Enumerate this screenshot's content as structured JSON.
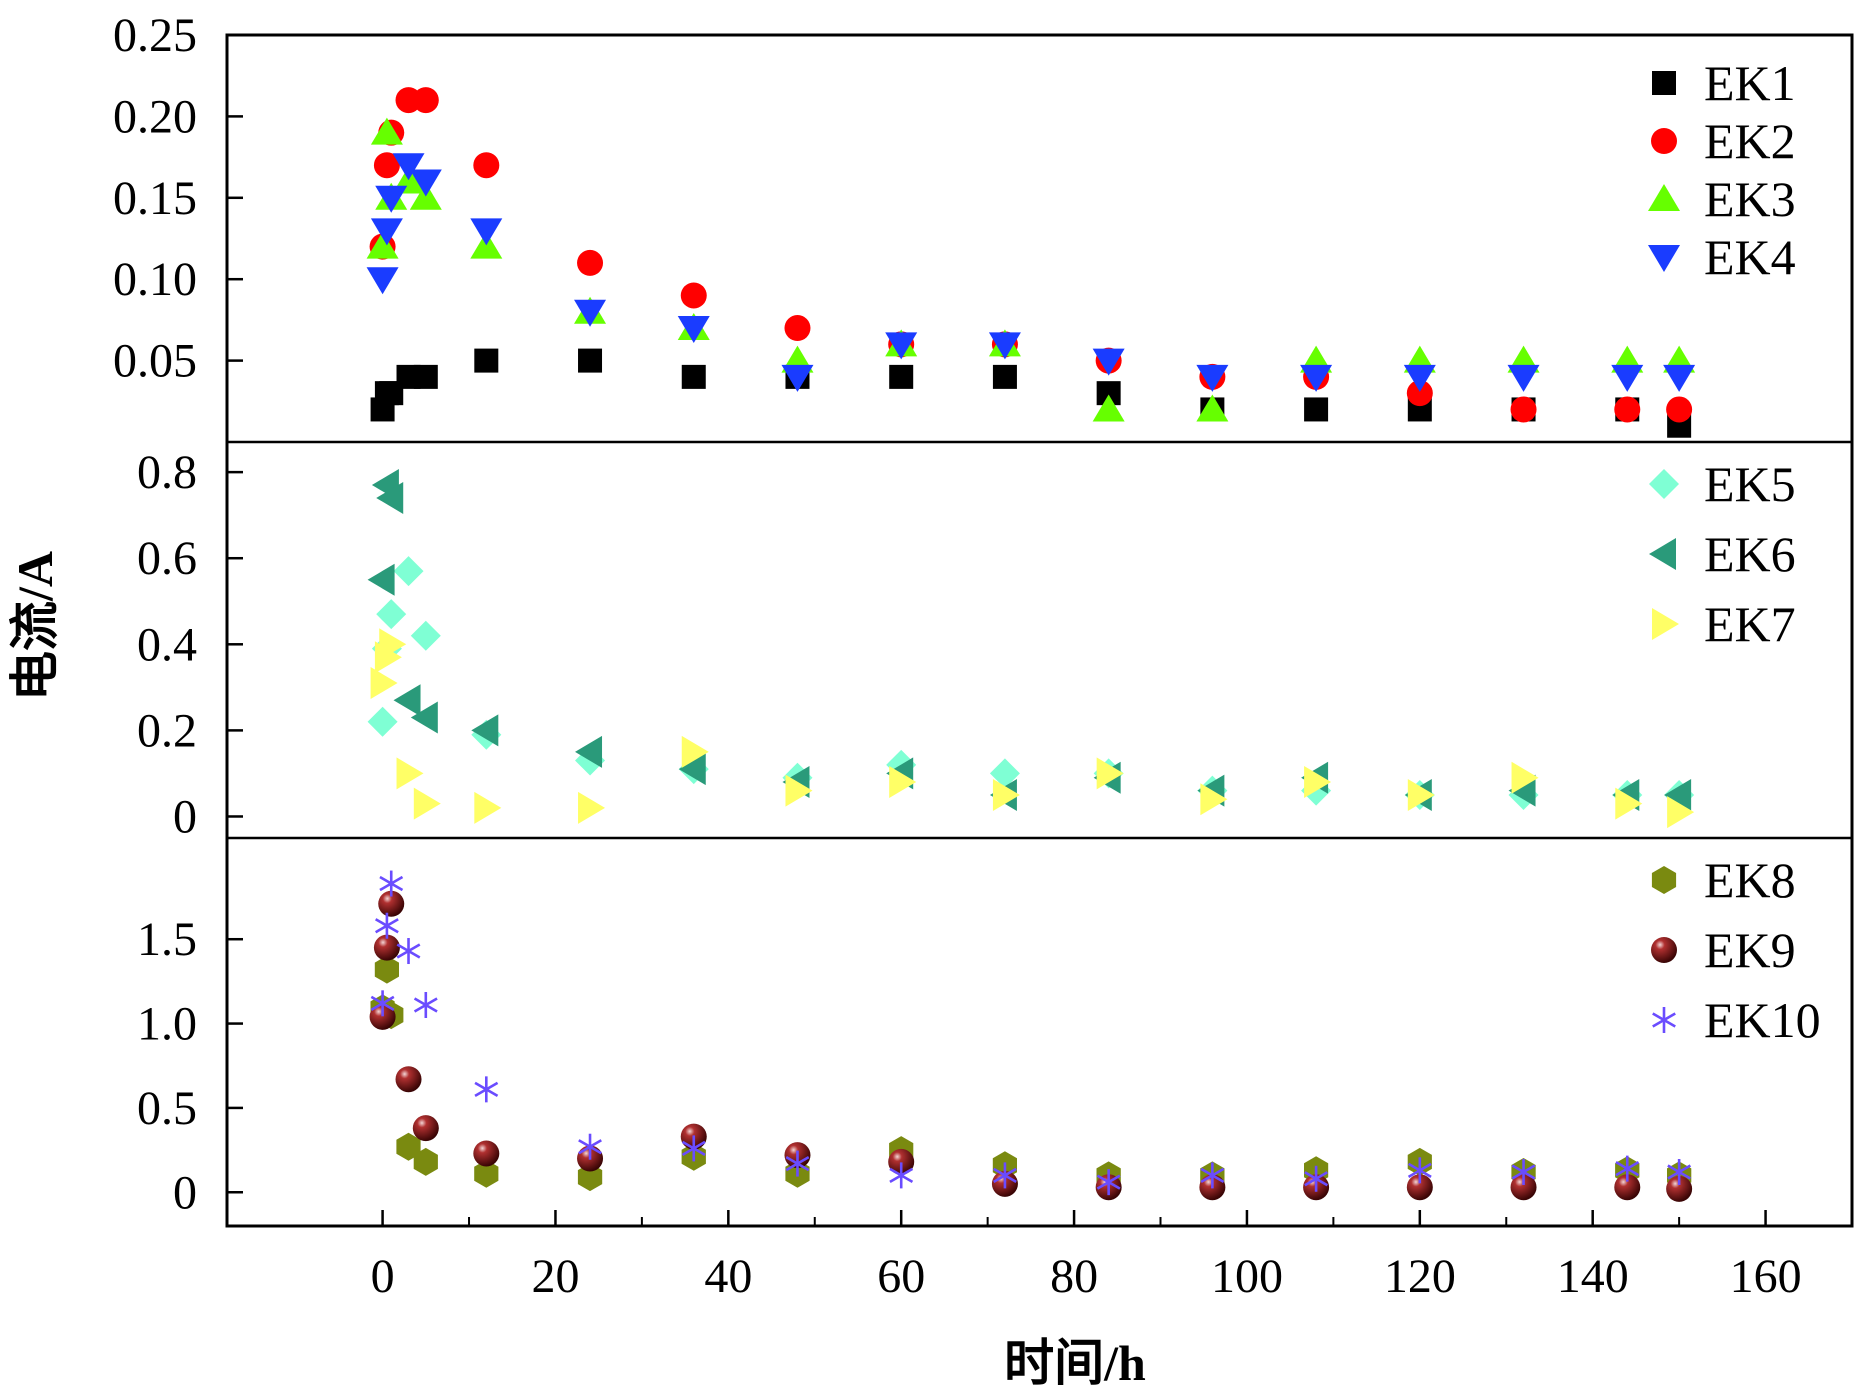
{
  "chart_data": {
    "type": "scatter",
    "xlabel": "时间/h",
    "ylabel": "电流/A",
    "xlim": [
      -18,
      170
    ],
    "xticks": [
      "0",
      "20",
      "40",
      "60",
      "80",
      "100",
      "120",
      "140",
      "160"
    ],
    "grid": false,
    "x": [
      0,
      0.5,
      1,
      3,
      5,
      12,
      24,
      36,
      48,
      60,
      72,
      84,
      96,
      108,
      120,
      132,
      144,
      150
    ],
    "panels": [
      {
        "ylim": [
          0,
          0.25
        ],
        "yticks": [
          "0.05",
          "0.10",
          "0.15",
          "0.20",
          "0.25"
        ],
        "legend_position": "top-right",
        "series": [
          {
            "name": "EK1",
            "marker": "square",
            "color": "#000000",
            "values": [
              0.02,
              0.03,
              0.03,
              0.04,
              0.04,
              0.05,
              0.05,
              0.04,
              0.04,
              0.04,
              0.04,
              0.03,
              0.02,
              0.02,
              0.02,
              0.02,
              0.02,
              0.01
            ]
          },
          {
            "name": "EK2",
            "marker": "circle",
            "color": "#ff0000",
            "values": [
              0.12,
              0.17,
              0.19,
              0.21,
              0.21,
              0.17,
              0.11,
              0.09,
              0.07,
              0.06,
              0.06,
              0.05,
              0.04,
              0.04,
              0.03,
              0.02,
              0.02,
              0.02
            ]
          },
          {
            "name": "EK3",
            "marker": "triangle-up",
            "color": "#66ff00",
            "values": [
              0.12,
              0.19,
              0.15,
              0.16,
              0.15,
              0.12,
              0.08,
              0.07,
              0.05,
              0.06,
              0.06,
              0.02,
              0.02,
              0.05,
              0.05,
              0.05,
              0.05,
              0.05
            ]
          },
          {
            "name": "EK4",
            "marker": "triangle-down",
            "color": "#1a3cff",
            "values": [
              0.1,
              0.13,
              0.15,
              0.17,
              0.16,
              0.13,
              0.08,
              0.07,
              0.04,
              0.06,
              0.06,
              0.05,
              0.04,
              0.04,
              0.04,
              0.04,
              0.04,
              0.04
            ]
          }
        ]
      },
      {
        "ylim": [
          -0.05,
          0.87
        ],
        "yticks": [
          "0",
          "0.2",
          "0.4",
          "0.6",
          "0.8"
        ],
        "legend_position": "top-right",
        "series": [
          {
            "name": "EK5",
            "marker": "diamond",
            "color": "#7fffd4",
            "values": [
              0.22,
              0.39,
              0.47,
              0.57,
              0.42,
              0.19,
              0.13,
              0.11,
              0.09,
              0.12,
              0.1,
              0.1,
              0.06,
              0.06,
              0.05,
              0.05,
              0.05,
              0.05
            ]
          },
          {
            "name": "EK6",
            "marker": "triangle-left",
            "color": "#2a9a7a",
            "values": [
              0.55,
              0.77,
              0.74,
              0.27,
              0.23,
              0.2,
              0.15,
              0.11,
              0.08,
              0.1,
              0.05,
              0.09,
              0.06,
              0.09,
              0.05,
              0.06,
              0.05,
              0.05
            ]
          },
          {
            "name": "EK7",
            "marker": "triangle-right",
            "color": "#ffff66",
            "values": [
              0.31,
              0.37,
              0.4,
              0.1,
              0.03,
              0.02,
              0.02,
              0.15,
              0.06,
              0.08,
              0.05,
              0.1,
              0.04,
              0.08,
              0.05,
              0.09,
              0.03,
              0.01
            ]
          }
        ]
      },
      {
        "ylim": [
          -0.2,
          2.1
        ],
        "yticks": [
          "0",
          "0.5",
          "1.0",
          "1.5"
        ],
        "legend_position": "top-right",
        "series": [
          {
            "name": "EK8",
            "marker": "hexagon",
            "color": "#7a8a10",
            "values": [
              1.09,
              1.32,
              1.05,
              0.27,
              0.18,
              0.11,
              0.09,
              0.21,
              0.11,
              0.25,
              0.16,
              0.1,
              0.1,
              0.13,
              0.18,
              0.12,
              0.13,
              0.1
            ]
          },
          {
            "name": "EK9",
            "marker": "sphere",
            "color": "#8b1a1a",
            "values": [
              1.04,
              1.45,
              1.71,
              0.67,
              0.38,
              0.23,
              0.2,
              0.33,
              0.22,
              0.18,
              0.05,
              0.03,
              0.03,
              0.03,
              0.03,
              0.03,
              0.03,
              0.02
            ]
          },
          {
            "name": "EK10",
            "marker": "asterisk",
            "color": "#6a4cff",
            "values": [
              1.12,
              1.58,
              1.83,
              1.43,
              1.11,
              0.61,
              0.27,
              0.26,
              0.17,
              0.1,
              0.1,
              0.06,
              0.1,
              0.08,
              0.13,
              0.12,
              0.14,
              0.12
            ]
          }
        ]
      }
    ]
  }
}
